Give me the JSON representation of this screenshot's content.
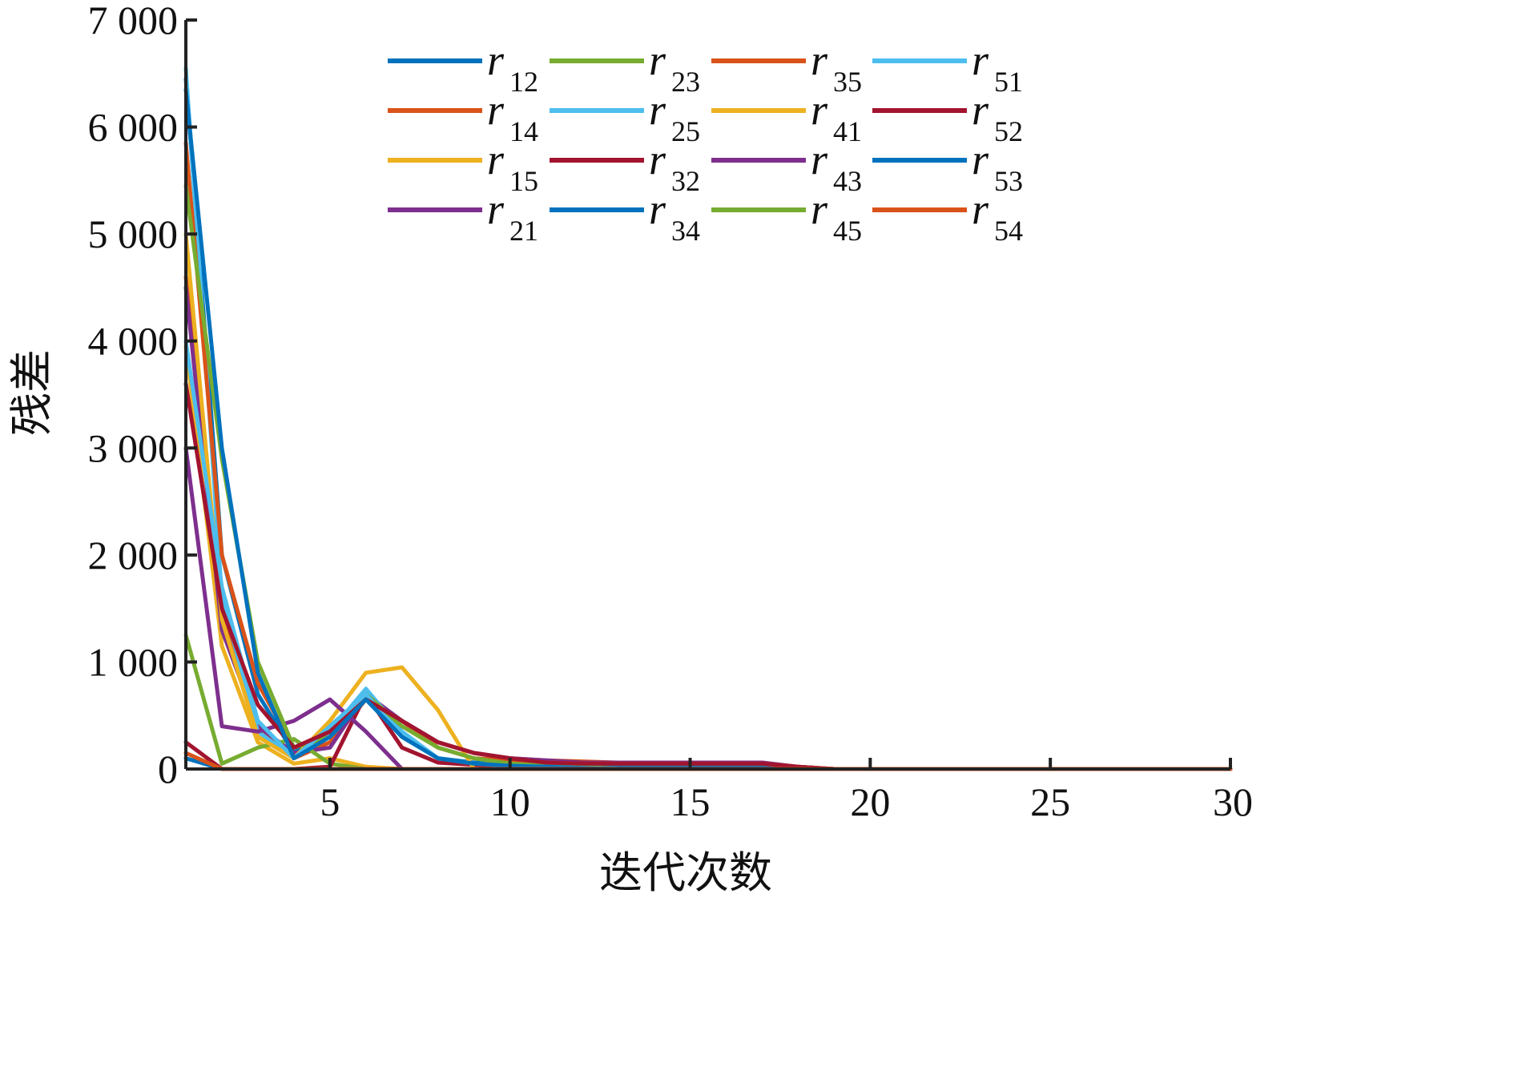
{
  "chart_data": {
    "type": "line",
    "xlabel": "迭代次数",
    "ylabel": "残差",
    "xlim": [
      1,
      30
    ],
    "ylim": [
      0,
      7000
    ],
    "xticks": [
      5,
      10,
      15,
      20,
      25,
      30
    ],
    "xtick_labels": [
      "5",
      "10",
      "15",
      "20",
      "25",
      "30"
    ],
    "yticks": [
      0,
      1000,
      2000,
      3000,
      4000,
      5000,
      6000,
      7000
    ],
    "ytick_labels": [
      "0",
      "1 000",
      "2 000",
      "3 000",
      "4 000",
      "5 000",
      "6 000",
      "7 000"
    ],
    "grid": false,
    "legend_position": "top-right",
    "legend_columns": 4,
    "x": [
      1,
      2,
      3,
      4,
      5,
      6,
      7,
      8,
      9,
      10,
      11,
      12,
      13,
      14,
      15,
      16,
      17,
      18,
      19,
      20,
      21,
      22,
      23,
      24,
      25,
      26,
      27,
      28,
      29,
      30
    ],
    "series": [
      {
        "name": "r",
        "sub": "12",
        "color": "#0072BD",
        "values": [
          6450,
          2000,
          700,
          150,
          400,
          700,
          300,
          100,
          60,
          50,
          40,
          40,
          30,
          30,
          30,
          30,
          30,
          10,
          0,
          0,
          0,
          0,
          0,
          0,
          0,
          0,
          0,
          0,
          0,
          0
        ]
      },
      {
        "name": "r",
        "sub": "14",
        "color": "#D95319",
        "values": [
          4600,
          1500,
          400,
          100,
          250,
          650,
          450,
          250,
          150,
          100,
          80,
          70,
          60,
          60,
          60,
          60,
          60,
          20,
          0,
          0,
          0,
          0,
          0,
          0,
          0,
          0,
          0,
          0,
          0,
          0
        ]
      },
      {
        "name": "r",
        "sub": "15",
        "color": "#EDB120",
        "values": [
          3950,
          1150,
          250,
          50,
          100,
          20,
          0,
          0,
          0,
          0,
          0,
          0,
          0,
          0,
          0,
          0,
          0,
          0,
          0,
          0,
          0,
          0,
          0,
          0,
          0,
          0,
          0,
          0,
          0,
          0
        ]
      },
      {
        "name": "r",
        "sub": "21",
        "color": "#7E2F8E",
        "values": [
          4500,
          1300,
          400,
          150,
          200,
          700,
          450,
          250,
          150,
          100,
          80,
          60,
          60,
          60,
          60,
          60,
          60,
          20,
          0,
          0,
          0,
          0,
          0,
          0,
          0,
          0,
          0,
          0,
          0,
          0
        ]
      },
      {
        "name": "r",
        "sub": "23",
        "color": "#77AC30",
        "values": [
          1250,
          50,
          200,
          280,
          50,
          0,
          0,
          0,
          0,
          0,
          0,
          0,
          0,
          0,
          0,
          0,
          0,
          0,
          0,
          0,
          0,
          0,
          0,
          0,
          0,
          0,
          0,
          0,
          0,
          0
        ]
      },
      {
        "name": "r",
        "sub": "25",
        "color": "#4DBEEE",
        "values": [
          6550,
          1600,
          350,
          100,
          350,
          750,
          350,
          100,
          50,
          30,
          20,
          10,
          0,
          0,
          0,
          0,
          0,
          0,
          0,
          0,
          0,
          0,
          0,
          0,
          0,
          0,
          0,
          0,
          0,
          0
        ]
      },
      {
        "name": "r",
        "sub": "32",
        "color": "#A2142F",
        "values": [
          250,
          0,
          0,
          0,
          20,
          700,
          200,
          60,
          40,
          30,
          20,
          10,
          0,
          0,
          0,
          0,
          0,
          0,
          0,
          0,
          0,
          0,
          0,
          0,
          0,
          0,
          0,
          0,
          0,
          0
        ]
      },
      {
        "name": "r",
        "sub": "34",
        "color": "#0072BD",
        "values": [
          100,
          0,
          0,
          0,
          0,
          0,
          0,
          0,
          0,
          0,
          0,
          0,
          0,
          0,
          0,
          0,
          0,
          0,
          0,
          0,
          0,
          0,
          0,
          0,
          0,
          0,
          0,
          0,
          0,
          0
        ]
      },
      {
        "name": "r",
        "sub": "35",
        "color": "#D95319",
        "values": [
          5850,
          2000,
          800,
          200,
          350,
          650,
          450,
          200,
          100,
          80,
          60,
          50,
          50,
          50,
          50,
          50,
          50,
          20,
          0,
          0,
          0,
          0,
          0,
          0,
          0,
          0,
          0,
          0,
          0,
          0
        ]
      },
      {
        "name": "r",
        "sub": "41",
        "color": "#EDB120",
        "values": [
          5000,
          1400,
          300,
          100,
          450,
          900,
          950,
          550,
          0,
          0,
          0,
          0,
          0,
          0,
          0,
          0,
          0,
          0,
          0,
          0,
          0,
          0,
          0,
          0,
          0,
          0,
          0,
          0,
          0,
          0
        ]
      },
      {
        "name": "r",
        "sub": "43",
        "color": "#7E2F8E",
        "values": [
          3000,
          400,
          350,
          450,
          650,
          350,
          0,
          0,
          0,
          0,
          0,
          0,
          0,
          0,
          0,
          0,
          0,
          0,
          0,
          0,
          0,
          0,
          0,
          0,
          0,
          0,
          0,
          0,
          0,
          0
        ]
      },
      {
        "name": "r",
        "sub": "45",
        "color": "#77AC30",
        "values": [
          5450,
          2900,
          1000,
          200,
          300,
          700,
          400,
          200,
          100,
          50,
          30,
          20,
          0,
          0,
          0,
          0,
          0,
          0,
          0,
          0,
          0,
          0,
          0,
          0,
          0,
          0,
          0,
          0,
          0,
          0
        ]
      },
      {
        "name": "r",
        "sub": "51",
        "color": "#4DBEEE",
        "values": [
          4000,
          1700,
          450,
          100,
          400,
          700,
          300,
          100,
          50,
          30,
          20,
          10,
          0,
          0,
          0,
          0,
          0,
          0,
          0,
          0,
          0,
          0,
          0,
          0,
          0,
          0,
          0,
          0,
          0,
          0
        ]
      },
      {
        "name": "r",
        "sub": "52",
        "color": "#A2142F",
        "values": [
          3600,
          1500,
          600,
          200,
          350,
          650,
          450,
          250,
          150,
          100,
          60,
          50,
          50,
          50,
          50,
          50,
          50,
          20,
          0,
          0,
          0,
          0,
          0,
          0,
          0,
          0,
          0,
          0,
          0,
          0
        ]
      },
      {
        "name": "r",
        "sub": "53",
        "color": "#0072BD",
        "values": [
          6350,
          3000,
          900,
          100,
          300,
          650,
          300,
          100,
          50,
          30,
          20,
          10,
          0,
          0,
          0,
          0,
          0,
          0,
          0,
          0,
          0,
          0,
          0,
          0,
          0,
          0,
          0,
          0,
          0,
          0
        ]
      },
      {
        "name": "r",
        "sub": "54",
        "color": "#D95319",
        "values": [
          150,
          0,
          0,
          0,
          0,
          0,
          0,
          0,
          0,
          0,
          0,
          0,
          0,
          0,
          0,
          0,
          0,
          0,
          0,
          0,
          0,
          0,
          0,
          0,
          0,
          0,
          0,
          0,
          0,
          0
        ]
      }
    ]
  }
}
